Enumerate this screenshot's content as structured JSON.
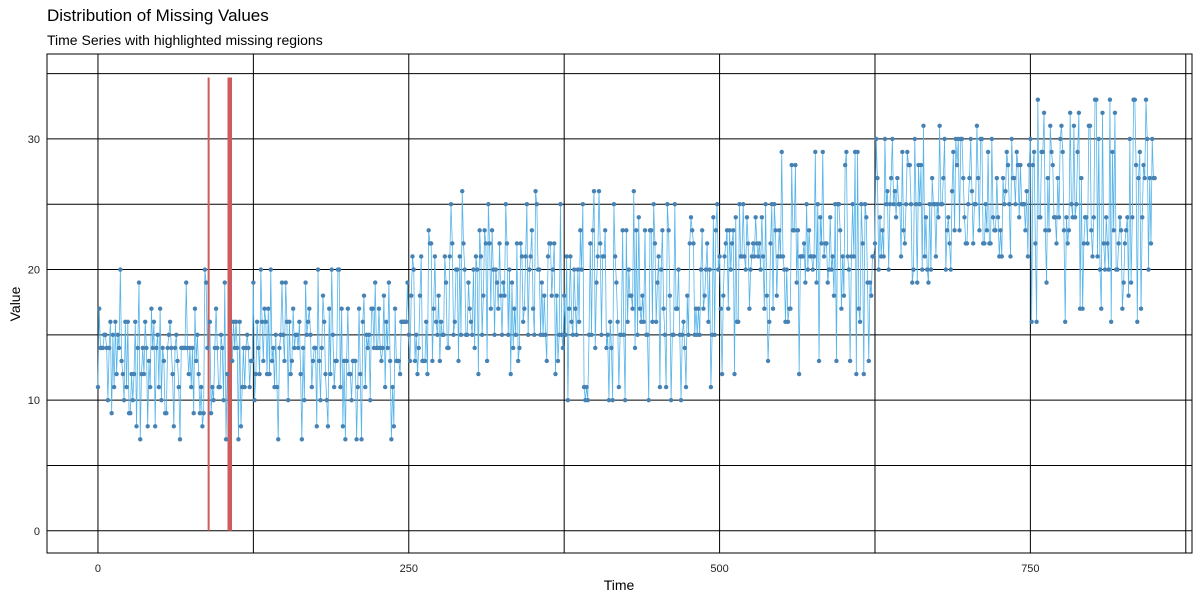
{
  "chart_data": {
    "type": "line",
    "title": "Distribution of Missing Values",
    "subtitle": "Time Series with highlighted missing regions",
    "xlabel": "Time",
    "ylabel": "Value",
    "xlim": [
      -41,
      880
    ],
    "ylim": [
      -1.7,
      36.5
    ],
    "x_ticks": [
      0,
      250,
      500,
      750
    ],
    "y_ticks": [
      0,
      10,
      20,
      30
    ],
    "grid": true,
    "legend": "none",
    "colors": {
      "series": "#4682B4",
      "line": "#56B4E9",
      "missing": "#CD5C5C",
      "grid": "#000000"
    },
    "missing_regions": [
      {
        "start": 89,
        "end": 89
      },
      {
        "start": 105,
        "end": 107
      }
    ],
    "missing_top": 34.7,
    "trend_segments": [
      {
        "start": 0,
        "end": 124,
        "low": 7,
        "high": 17,
        "low2": 8,
        "high2": 20,
        "base": 14
      },
      {
        "start": 125,
        "end": 249,
        "low": 7,
        "high": 18,
        "low2": 10,
        "high2": 20,
        "base": 13
      },
      {
        "start": 250,
        "end": 374,
        "low": 12,
        "high": 23,
        "low2": 13,
        "high2": 26,
        "base": 15
      },
      {
        "start": 375,
        "end": 499,
        "low": 10,
        "high": 24,
        "low2": 14,
        "high2": 26,
        "base": 15
      },
      {
        "start": 500,
        "end": 624,
        "low": 12,
        "high": 26,
        "low2": 16,
        "high2": 29,
        "base": 21
      },
      {
        "start": 625,
        "end": 749,
        "low": 19,
        "high": 30,
        "low2": 21,
        "high2": 31,
        "base": 25
      },
      {
        "start": 750,
        "end": 850,
        "low": 16,
        "high": 32,
        "low2": 18,
        "high2": 33,
        "base": 24
      }
    ]
  }
}
